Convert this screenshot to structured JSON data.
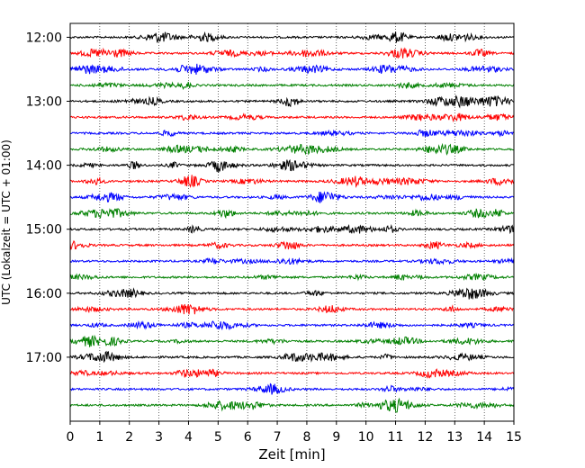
{
  "chart_data": {
    "type": "line",
    "title": "",
    "xlabel": "Zeit  [min]",
    "ylabel": "UTC (Lokalzeit = UTC + 01:00)",
    "xlim": [
      0,
      15
    ],
    "xticks": [
      "0",
      "1",
      "2",
      "3",
      "4",
      "5",
      "6",
      "7",
      "8",
      "9",
      "10",
      "11",
      "12",
      "13",
      "14",
      "15"
    ],
    "ylim": [
      "11:47",
      "18:00"
    ],
    "yticks": [
      "12:00",
      "13:00",
      "14:00",
      "15:00",
      "16:00",
      "17:00"
    ],
    "grid": "x-dotted",
    "trace_interval_min": 15,
    "colors": [
      "#000000",
      "#ff0000",
      "#0000ff",
      "#008000"
    ],
    "traces": [
      {
        "start": "12:00",
        "color": "#000000"
      },
      {
        "start": "12:15",
        "color": "#ff0000"
      },
      {
        "start": "12:30",
        "color": "#0000ff"
      },
      {
        "start": "12:45",
        "color": "#008000"
      },
      {
        "start": "13:00",
        "color": "#000000"
      },
      {
        "start": "13:15",
        "color": "#ff0000"
      },
      {
        "start": "13:30",
        "color": "#0000ff"
      },
      {
        "start": "13:45",
        "color": "#008000"
      },
      {
        "start": "14:00",
        "color": "#000000"
      },
      {
        "start": "14:15",
        "color": "#ff0000"
      },
      {
        "start": "14:30",
        "color": "#0000ff"
      },
      {
        "start": "14:45",
        "color": "#008000"
      },
      {
        "start": "15:00",
        "color": "#000000"
      },
      {
        "start": "15:15",
        "color": "#ff0000"
      },
      {
        "start": "15:30",
        "color": "#0000ff"
      },
      {
        "start": "15:45",
        "color": "#008000"
      },
      {
        "start": "16:00",
        "color": "#000000"
      },
      {
        "start": "16:15",
        "color": "#ff0000"
      },
      {
        "start": "16:30",
        "color": "#0000ff"
      },
      {
        "start": "16:45",
        "color": "#008000"
      },
      {
        "start": "17:00",
        "color": "#000000"
      },
      {
        "start": "17:15",
        "color": "#ff0000"
      },
      {
        "start": "17:30",
        "color": "#0000ff"
      },
      {
        "start": "17:45",
        "color": "#008000"
      }
    ]
  }
}
